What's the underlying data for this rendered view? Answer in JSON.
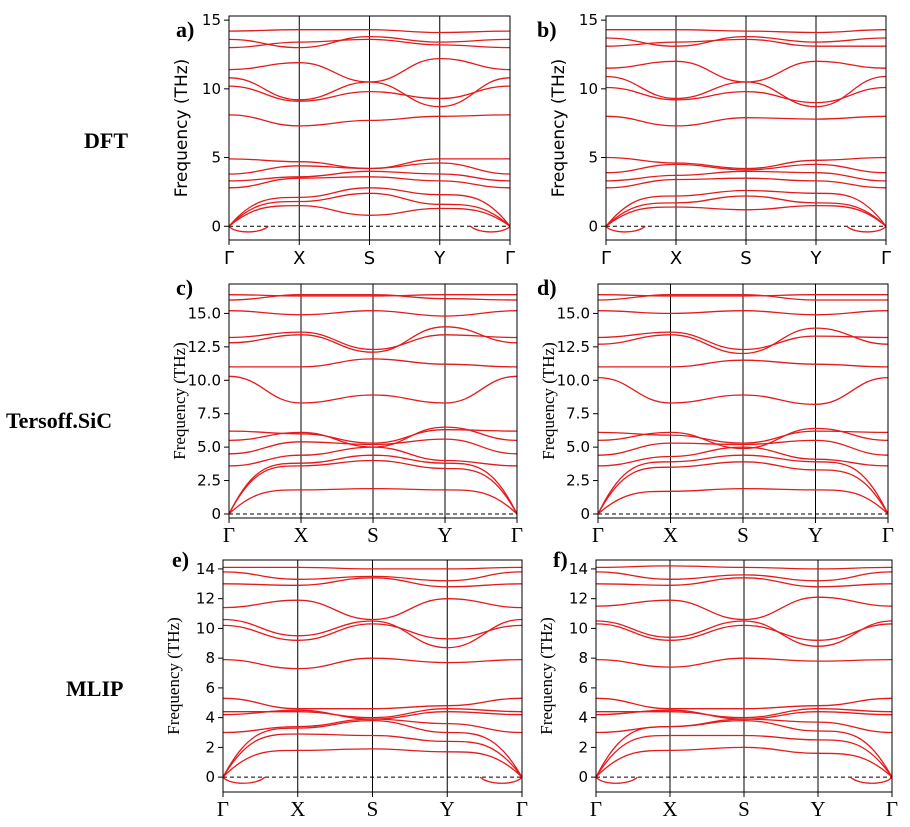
{
  "row_labels": [
    "DFT",
    "Tersoff.SiC",
    "MLIP"
  ],
  "colors": {
    "band": "#e41a1c",
    "axis": "#000000",
    "zero_line": "#000000"
  },
  "chart_data": [
    {
      "panel": "a)",
      "type": "line",
      "method": "DFT",
      "ylabel": "Frequency (THz)",
      "ylim": [
        -1,
        15.3
      ],
      "yticks": [
        "0",
        "5",
        "10",
        "15"
      ],
      "ytick_values": [
        0,
        5,
        10,
        15
      ],
      "xticks": [
        "Γ",
        "X",
        "S",
        "Y",
        "Γ"
      ],
      "imaginary_dip": 1,
      "series": [
        {
          "name": "band-1",
          "values": [
            0,
            1.5,
            0.8,
            1.3,
            0
          ]
        },
        {
          "name": "band-2",
          "values": [
            0,
            1.8,
            2.4,
            1.6,
            0
          ]
        },
        {
          "name": "band-3",
          "values": [
            0,
            2.1,
            2.8,
            2.3,
            0
          ]
        },
        {
          "name": "band-4",
          "values": [
            2.8,
            3.5,
            3.6,
            3.3,
            2.8
          ]
        },
        {
          "name": "band-5",
          "values": [
            3.3,
            3.6,
            4.0,
            3.8,
            3.3
          ]
        },
        {
          "name": "band-6",
          "values": [
            3.8,
            4.4,
            4.2,
            4.6,
            3.8
          ]
        },
        {
          "name": "band-7",
          "values": [
            4.9,
            4.7,
            4.2,
            4.9,
            4.9
          ]
        },
        {
          "name": "band-8",
          "values": [
            8.1,
            7.3,
            7.7,
            8.0,
            8.1
          ]
        },
        {
          "name": "band-9",
          "values": [
            10.2,
            9.1,
            9.8,
            9.3,
            10.2
          ]
        },
        {
          "name": "band-10",
          "values": [
            10.8,
            9.2,
            10.5,
            8.7,
            10.8
          ]
        },
        {
          "name": "band-11",
          "values": [
            11.4,
            11.9,
            10.5,
            12.2,
            11.4
          ]
        },
        {
          "name": "band-12",
          "values": [
            13.0,
            13.4,
            13.6,
            13.2,
            13.0
          ]
        },
        {
          "name": "band-13",
          "values": [
            13.6,
            13.0,
            13.8,
            13.4,
            13.6
          ]
        },
        {
          "name": "band-14",
          "values": [
            14.2,
            14.3,
            14.3,
            14.1,
            14.2
          ]
        }
      ]
    },
    {
      "panel": "b)",
      "type": "line",
      "method": "DFT",
      "ylabel": "Frequency (THz)",
      "ylim": [
        -1,
        15.3
      ],
      "yticks": [
        "0",
        "5",
        "10",
        "15"
      ],
      "ytick_values": [
        0,
        5,
        10,
        15
      ],
      "xticks": [
        "Γ",
        "X",
        "S",
        "Y",
        "Γ"
      ],
      "imaginary_dip": 1,
      "series": [
        {
          "name": "band-1",
          "values": [
            0,
            1.4,
            1.2,
            1.5,
            0
          ]
        },
        {
          "name": "band-2",
          "values": [
            0,
            1.7,
            2.2,
            1.7,
            0
          ]
        },
        {
          "name": "band-3",
          "values": [
            0,
            2.2,
            2.6,
            2.4,
            0
          ]
        },
        {
          "name": "band-4",
          "values": [
            2.8,
            3.4,
            3.5,
            3.3,
            2.8
          ]
        },
        {
          "name": "band-5",
          "values": [
            3.3,
            3.7,
            4.0,
            3.9,
            3.3
          ]
        },
        {
          "name": "band-6",
          "values": [
            3.9,
            4.5,
            4.1,
            4.5,
            3.9
          ]
        },
        {
          "name": "band-7",
          "values": [
            5.0,
            4.6,
            4.2,
            4.8,
            5.0
          ]
        },
        {
          "name": "band-8",
          "values": [
            8.0,
            7.3,
            7.9,
            7.8,
            8.0
          ]
        },
        {
          "name": "band-9",
          "values": [
            10.1,
            9.2,
            9.8,
            9.0,
            10.1
          ]
        },
        {
          "name": "band-10",
          "values": [
            10.9,
            9.3,
            10.5,
            8.7,
            10.9
          ]
        },
        {
          "name": "band-11",
          "values": [
            11.5,
            12.0,
            10.5,
            12.0,
            11.5
          ]
        },
        {
          "name": "band-12",
          "values": [
            13.1,
            13.4,
            13.6,
            13.1,
            13.1
          ]
        },
        {
          "name": "band-13",
          "values": [
            13.7,
            13.1,
            13.8,
            13.4,
            13.7
          ]
        },
        {
          "name": "band-14",
          "values": [
            14.3,
            14.3,
            14.2,
            14.1,
            14.3
          ]
        }
      ]
    },
    {
      "panel": "c)",
      "type": "line",
      "method": "Tersoff.SiC",
      "ylabel": "Frequency (THz)",
      "ylim": [
        -0.3,
        17.2
      ],
      "yticks": [
        "0",
        "2.5",
        "5.0",
        "7.5",
        "10.0",
        "12.5",
        "15.0"
      ],
      "ytick_values": [
        0,
        2.5,
        5,
        7.5,
        10,
        12.5,
        15
      ],
      "xticks": [
        "Γ",
        "X",
        "S",
        "Y",
        "Γ"
      ],
      "imaginary_dip": 0,
      "series": [
        {
          "name": "band-1",
          "values": [
            0,
            1.8,
            1.9,
            1.8,
            0
          ]
        },
        {
          "name": "band-2",
          "values": [
            0,
            3.6,
            4.0,
            3.4,
            0
          ]
        },
        {
          "name": "band-3",
          "values": [
            0,
            3.8,
            4.4,
            3.8,
            0
          ]
        },
        {
          "name": "band-4",
          "values": [
            3.6,
            4.4,
            5.0,
            4.0,
            3.6
          ]
        },
        {
          "name": "band-5",
          "values": [
            4.5,
            5.4,
            5.2,
            5.6,
            4.5
          ]
        },
        {
          "name": "band-6",
          "values": [
            5.5,
            6.1,
            5.0,
            6.5,
            5.5
          ]
        },
        {
          "name": "band-7",
          "values": [
            6.2,
            6.0,
            5.3,
            6.3,
            6.2
          ]
        },
        {
          "name": "band-8",
          "values": [
            10.3,
            8.3,
            8.9,
            8.3,
            10.3
          ]
        },
        {
          "name": "band-9",
          "values": [
            11.0,
            11.0,
            11.6,
            11.2,
            11.0
          ]
        },
        {
          "name": "band-10",
          "values": [
            12.8,
            13.4,
            12.1,
            14.0,
            12.8
          ]
        },
        {
          "name": "band-11",
          "values": [
            13.2,
            13.6,
            12.3,
            13.4,
            13.2
          ]
        },
        {
          "name": "band-12",
          "values": [
            15.2,
            14.9,
            15.2,
            14.8,
            15.2
          ]
        },
        {
          "name": "band-13",
          "values": [
            16.0,
            16.4,
            16.4,
            16.1,
            16.0
          ]
        },
        {
          "name": "band-14",
          "values": [
            16.4,
            16.3,
            16.3,
            16.4,
            16.4
          ]
        }
      ]
    },
    {
      "panel": "d)",
      "type": "line",
      "method": "Tersoff.SiC",
      "ylabel": "Frequency (THz)",
      "ylim": [
        -0.3,
        17.2
      ],
      "yticks": [
        "0",
        "2.5",
        "5.0",
        "7.5",
        "10.0",
        "12.5",
        "15.0"
      ],
      "ytick_values": [
        0,
        2.5,
        5,
        7.5,
        10,
        12.5,
        15
      ],
      "xticks": [
        "Γ",
        "X",
        "S",
        "Y",
        "Γ"
      ],
      "imaginary_dip": 0,
      "series": [
        {
          "name": "band-1",
          "values": [
            0,
            1.7,
            1.9,
            1.8,
            0
          ]
        },
        {
          "name": "band-2",
          "values": [
            0,
            3.5,
            3.9,
            3.3,
            0
          ]
        },
        {
          "name": "band-3",
          "values": [
            0,
            3.9,
            4.4,
            3.9,
            0
          ]
        },
        {
          "name": "band-4",
          "values": [
            3.6,
            4.3,
            5.0,
            4.1,
            3.6
          ]
        },
        {
          "name": "band-5",
          "values": [
            4.4,
            5.3,
            5.2,
            5.5,
            4.4
          ]
        },
        {
          "name": "band-6",
          "values": [
            5.5,
            6.1,
            4.9,
            6.4,
            5.5
          ]
        },
        {
          "name": "band-7",
          "values": [
            6.1,
            5.9,
            5.3,
            6.2,
            6.1
          ]
        },
        {
          "name": "band-8",
          "values": [
            10.2,
            8.3,
            8.9,
            8.2,
            10.2
          ]
        },
        {
          "name": "band-9",
          "values": [
            11.0,
            11.0,
            11.5,
            11.2,
            11.0
          ]
        },
        {
          "name": "band-10",
          "values": [
            12.7,
            13.4,
            12.0,
            13.9,
            12.7
          ]
        },
        {
          "name": "band-11",
          "values": [
            13.2,
            13.6,
            12.3,
            13.3,
            13.2
          ]
        },
        {
          "name": "band-12",
          "values": [
            15.2,
            15.0,
            15.2,
            14.9,
            15.2
          ]
        },
        {
          "name": "band-13",
          "values": [
            16.0,
            16.4,
            16.4,
            16.0,
            16.0
          ]
        },
        {
          "name": "band-14",
          "values": [
            16.4,
            16.3,
            16.3,
            16.4,
            16.4
          ]
        }
      ]
    },
    {
      "panel": "e)",
      "type": "line",
      "method": "MLIP",
      "ylabel": "Frequency (THz)",
      "ylim": [
        -1,
        14.6
      ],
      "yticks": [
        "0",
        "2",
        "4",
        "6",
        "8",
        "10",
        "12",
        "14"
      ],
      "ytick_values": [
        0,
        2,
        4,
        6,
        8,
        10,
        12,
        14
      ],
      "xticks": [
        "Γ",
        "X",
        "S",
        "Y",
        "Γ"
      ],
      "imaginary_dip": 1,
      "series": [
        {
          "name": "band-1",
          "values": [
            0,
            1.8,
            1.9,
            1.7,
            0
          ]
        },
        {
          "name": "band-2",
          "values": [
            0,
            2.9,
            2.8,
            2.4,
            0
          ]
        },
        {
          "name": "band-3",
          "values": [
            0,
            3.3,
            3.8,
            3.0,
            0
          ]
        },
        {
          "name": "band-4",
          "values": [
            3.0,
            3.4,
            3.9,
            3.6,
            3.0
          ]
        },
        {
          "name": "band-5",
          "values": [
            4.2,
            4.5,
            3.9,
            4.4,
            4.2
          ]
        },
        {
          "name": "band-6",
          "values": [
            4.4,
            4.4,
            4.0,
            4.6,
            4.4
          ]
        },
        {
          "name": "band-7",
          "values": [
            5.3,
            4.6,
            4.6,
            4.8,
            5.3
          ]
        },
        {
          "name": "band-8",
          "values": [
            7.9,
            7.3,
            8.0,
            7.7,
            7.9
          ]
        },
        {
          "name": "band-9",
          "values": [
            10.2,
            9.2,
            10.3,
            9.3,
            10.2
          ]
        },
        {
          "name": "band-10",
          "values": [
            10.6,
            9.5,
            10.5,
            8.7,
            10.6
          ]
        },
        {
          "name": "band-11",
          "values": [
            11.4,
            11.9,
            10.6,
            12.0,
            11.4
          ]
        },
        {
          "name": "band-12",
          "values": [
            13.0,
            12.9,
            13.4,
            12.8,
            13.0
          ]
        },
        {
          "name": "band-13",
          "values": [
            13.8,
            13.3,
            13.5,
            13.2,
            13.8
          ]
        },
        {
          "name": "band-14",
          "values": [
            14.1,
            14.1,
            14.0,
            14.0,
            14.1
          ]
        }
      ]
    },
    {
      "panel": "f)",
      "type": "line",
      "method": "MLIP",
      "ylabel": "Frequency (THz)",
      "ylim": [
        -1,
        14.6
      ],
      "yticks": [
        "0",
        "2",
        "4",
        "6",
        "8",
        "10",
        "12",
        "14"
      ],
      "ytick_values": [
        0,
        2,
        4,
        6,
        8,
        10,
        12,
        14
      ],
      "xticks": [
        "Γ",
        "X",
        "S",
        "Y",
        "Γ"
      ],
      "imaginary_dip": 1,
      "series": [
        {
          "name": "band-1",
          "values": [
            0,
            1.8,
            2.0,
            1.6,
            0
          ]
        },
        {
          "name": "band-2",
          "values": [
            0,
            2.8,
            2.8,
            2.5,
            0
          ]
        },
        {
          "name": "band-3",
          "values": [
            0,
            3.4,
            3.8,
            3.1,
            0
          ]
        },
        {
          "name": "band-4",
          "values": [
            3.0,
            3.4,
            3.9,
            3.7,
            3.0
          ]
        },
        {
          "name": "band-5",
          "values": [
            4.2,
            4.5,
            3.9,
            4.4,
            4.2
          ]
        },
        {
          "name": "band-6",
          "values": [
            4.4,
            4.4,
            4.0,
            4.6,
            4.4
          ]
        },
        {
          "name": "band-7",
          "values": [
            5.3,
            4.6,
            4.6,
            4.8,
            5.3
          ]
        },
        {
          "name": "band-8",
          "values": [
            7.9,
            7.4,
            8.0,
            7.8,
            7.9
          ]
        },
        {
          "name": "band-9",
          "values": [
            10.3,
            9.2,
            10.2,
            9.2,
            10.3
          ]
        },
        {
          "name": "band-10",
          "values": [
            10.5,
            9.4,
            10.5,
            8.8,
            10.5
          ]
        },
        {
          "name": "band-11",
          "values": [
            11.5,
            11.9,
            10.6,
            12.1,
            11.5
          ]
        },
        {
          "name": "band-12",
          "values": [
            13.0,
            12.9,
            13.4,
            12.8,
            13.0
          ]
        },
        {
          "name": "band-13",
          "values": [
            13.8,
            13.3,
            13.6,
            13.2,
            13.8
          ]
        },
        {
          "name": "band-14",
          "values": [
            14.1,
            14.2,
            14.1,
            14.0,
            14.1
          ]
        }
      ]
    }
  ]
}
